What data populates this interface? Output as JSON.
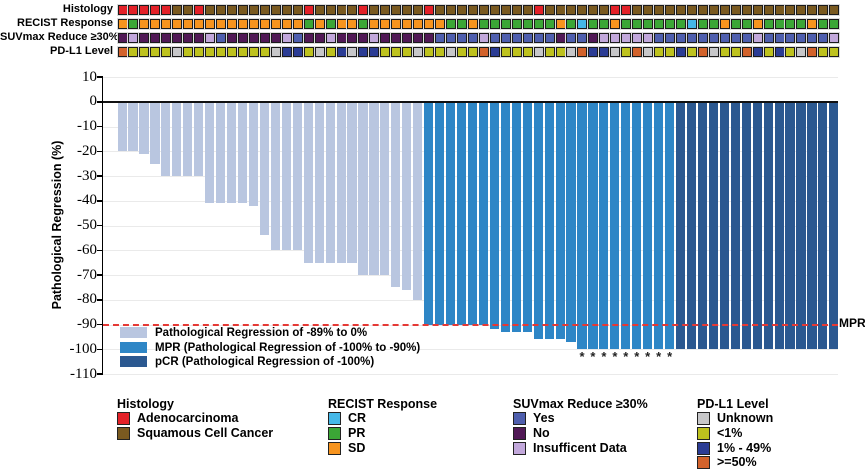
{
  "annotation_tracks": {
    "rows": [
      {
        "label": "Histology",
        "cells": "RRRRRBBRBBBBBBBBBRBBBBRBBBBBRBBBBBBBBBRBBBBBBRRBBBBBBBBBBBBBBBBBBB",
        "categories": [
          {
            "key": "R",
            "label": "Adenocarcinoma",
            "color": "#E32128"
          },
          {
            "key": "B",
            "label": "Squamous Cell Cancer",
            "color": "#7A5A20"
          }
        ]
      },
      {
        "label": "RECIST Response",
        "cells": "OGOOOOOOOOOOOOOOOGOGOOGOOOOOOOGGOGGGGGGGOGCGGOGGGGGGCGGOGGOGGGGOGG",
        "categories": [
          {
            "key": "C",
            "label": "CR",
            "color": "#45B8E8"
          },
          {
            "key": "G",
            "label": "PR",
            "color": "#3BA636"
          },
          {
            "key": "O",
            "label": "SD",
            "color": "#F7941E"
          }
        ]
      },
      {
        "label": "SUVmax Reduce ≥30%",
        "cells": "DLDDDDDDLBDDDDDLBDDLDDDLDDDDDBBBBLBBBBBBDBBDLLLLLBBBBBBBBBLBBBBBBL",
        "categories": [
          {
            "key": "B",
            "label": "Yes",
            "color": "#4F5FAE"
          },
          {
            "key": "D",
            "label": "No",
            "color": "#511956"
          },
          {
            "key": "L",
            "label": "Insufficent Data",
            "color": "#C2A8DB"
          }
        ]
      },
      {
        "label": "PD-L1 Level",
        "cells": "OYYYYUYYYYYYYYUBBYUYBUBBYYYUYYUYYOBYYYUYYUOBBUYOUYYBYOUYYOBYBYUOYY",
        "categories": [
          {
            "key": "U",
            "label": "Unknown",
            "color": "#C7C7C9"
          },
          {
            "key": "Y",
            "label": "<1%",
            "color": "#BEC21E"
          },
          {
            "key": "B",
            "label": "1% - 49%",
            "color": "#2B3C94"
          },
          {
            "key": "O",
            "label": ">=50%",
            "color": "#D2622B"
          }
        ]
      }
    ]
  },
  "chart_data": {
    "type": "bar",
    "title": "",
    "xlabel": "",
    "ylabel": "Pathological Regression (%)",
    "ylim": [
      -110,
      10
    ],
    "yticks": [
      10,
      0,
      -10,
      -20,
      -30,
      -40,
      -50,
      -60,
      -70,
      -80,
      -90,
      -100,
      -110
    ],
    "grid": "horizontal-light",
    "values": [
      -20,
      -20,
      -21,
      -25,
      -30,
      -30,
      -30,
      -30,
      -41,
      -41,
      -41,
      -41,
      -42,
      -54,
      -60,
      -60,
      -60,
      -65,
      -65,
      -65,
      -65,
      -65,
      -70,
      -70,
      -70,
      -75,
      -76,
      -80,
      -90,
      -90,
      -90,
      -90,
      -90,
      -90,
      -92,
      -93,
      -93,
      -93,
      -96,
      -96,
      -96,
      -97,
      -100,
      -100,
      -100,
      -100,
      -100,
      -100,
      -100,
      -100,
      -100,
      -100,
      -100,
      -100,
      -100,
      -100,
      -100,
      -100,
      -100,
      -100,
      -100,
      -100,
      -100,
      -100,
      -100,
      -100
    ],
    "classes": "LLLLLLLLLLLLLLLLLLLLLLLLLLLLMMMMMMMMMMMMMMMMMMMMMMMDDDDDDDDDDDDDDD",
    "class_legend": [
      {
        "key": "L",
        "label": "Pathological Regression of -89% to 0%",
        "color": "#B9C6E0"
      },
      {
        "key": "M",
        "label": "MPR (Pathological Regression of -100% to -90%)",
        "color": "#2E86C6"
      },
      {
        "key": "D",
        "label": "pCR (Pathological Regression of -100%)",
        "color": "#2B5890"
      }
    ],
    "reference_line": {
      "value": -90,
      "label": "MPR",
      "color": "#E53935",
      "style": "dashed"
    },
    "starred_columns": [
      43,
      44,
      45,
      46,
      47,
      48,
      49,
      50,
      51
    ],
    "star_symbol": "*"
  },
  "bottom_legend": {
    "groups": [
      {
        "title": "Histology",
        "items": [
          {
            "label": "Adenocarcinoma",
            "color": "#E32128"
          },
          {
            "label": "Squamous Cell Cancer",
            "color": "#7A5A20"
          }
        ]
      },
      {
        "title": "RECIST Response",
        "items": [
          {
            "label": "CR",
            "color": "#45B8E8"
          },
          {
            "label": "PR",
            "color": "#3BA636"
          },
          {
            "label": "SD",
            "color": "#F7941E"
          }
        ]
      },
      {
        "title": "SUVmax Reduce ≥30%",
        "items": [
          {
            "label": "Yes",
            "color": "#4F5FAE"
          },
          {
            "label": "No",
            "color": "#511956"
          },
          {
            "label": "Insufficent Data",
            "color": "#C2A8DB"
          }
        ]
      },
      {
        "title": "PD-L1 Level",
        "items": [
          {
            "label": "Unknown",
            "color": "#C7C7C9"
          },
          {
            "label": "<1%",
            "color": "#BEC21E"
          },
          {
            "label": "1% - 49%",
            "color": "#2B3C94"
          },
          {
            "label": ">=50%",
            "color": "#D2622B"
          }
        ]
      }
    ]
  }
}
